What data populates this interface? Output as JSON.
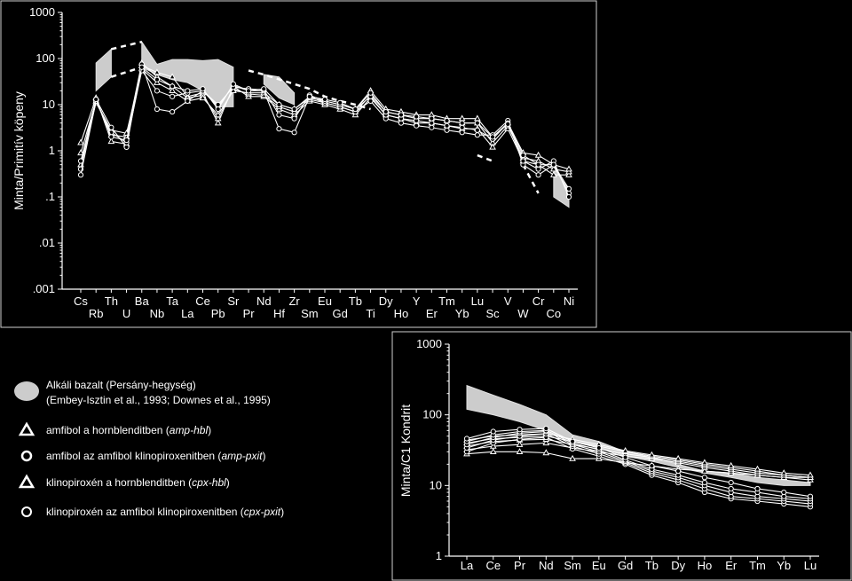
{
  "chart_data": [
    {
      "type": "line",
      "yscale": "log",
      "ylim": [
        0.001,
        1000
      ],
      "ylabel": "Minta/Primitív köpeny",
      "yticks": [
        "1000",
        "100",
        "10",
        "1",
        ".1",
        ".01",
        ".001"
      ],
      "categories": [
        "Cs",
        "Rb",
        "Th",
        "U",
        "Ba",
        "Nb",
        "Ta",
        "La",
        "Ce",
        "Pb",
        "Sr",
        "Pr",
        "Nd",
        "Hf",
        "Zr",
        "Sm",
        "Eu",
        "Gd",
        "Tb",
        "Ti",
        "Dy",
        "Ho",
        "Y",
        "Er",
        "Tm",
        "Yb",
        "Lu",
        "Sc",
        "V",
        "W",
        "Cr",
        "Co",
        "Ni"
      ],
      "top_row": [
        "Cs",
        "Th",
        "Ba",
        "Ta",
        "Ce",
        "Sr",
        "Nd",
        "Zr",
        "Eu",
        "Tb",
        "Dy",
        "Y",
        "Tm",
        "Lu",
        "V",
        "Cr",
        "Ni"
      ],
      "bottom_row": [
        "Rb",
        "U",
        "Nb",
        "La",
        "Pb",
        "Pr",
        "Hf",
        "Sm",
        "Gd",
        "Ti",
        "Ho",
        "Er",
        "Yb",
        "Sc",
        "W",
        "Co"
      ],
      "field": {
        "name": "Alkáli bazalt (Persány-hegység)",
        "upper": [
          null,
          80,
          160,
          null,
          230,
          75,
          95,
          95,
          90,
          95,
          65,
          null,
          null,
          null,
          null,
          null,
          null,
          null,
          null,
          null,
          null,
          null,
          null,
          null,
          null,
          null,
          null,
          null,
          null,
          null,
          null,
          0.45,
          0.14
        ],
        "lower": [
          null,
          20,
          40,
          null,
          65,
          45,
          35,
          30,
          20,
          9,
          9,
          null,
          null,
          null,
          null,
          null,
          null,
          null,
          null,
          null,
          null,
          null,
          null,
          null,
          null,
          null,
          null,
          null,
          null,
          null,
          null,
          0.1,
          0.06
        ],
        "dashed_upper": [
          [
            2,
            160
          ],
          [
            4,
            230
          ],
          null,
          [
            11,
            55
          ],
          [
            12,
            45
          ],
          [
            15,
            22
          ],
          [
            16,
            15
          ],
          [
            17,
            12
          ],
          [
            18,
            10
          ],
          [
            19,
            8
          ]
        ],
        "upper2": [
          null,
          null,
          null,
          null,
          null,
          null,
          null,
          null,
          null,
          null,
          null,
          null,
          45,
          40,
          18,
          null,
          null,
          null,
          null,
          null,
          null,
          null,
          null,
          null,
          null,
          null,
          null,
          null,
          null,
          null,
          null,
          null,
          null
        ],
        "lower2": [
          null,
          null,
          null,
          null,
          null,
          null,
          null,
          null,
          null,
          null,
          null,
          null,
          28,
          14,
          10,
          null,
          null,
          null,
          null,
          null,
          null,
          null,
          null,
          null,
          null,
          null,
          null,
          null,
          null,
          null,
          null,
          null,
          null
        ]
      },
      "series": [
        {
          "symbol": "triangle",
          "values": [
            1.5,
            14,
            1.6,
            1.4,
            70,
            50,
            40,
            15,
            18,
            4,
            25,
            15,
            15,
            8,
            6,
            12,
            10,
            8,
            6,
            14,
            6,
            5,
            4,
            4,
            3.5,
            3,
            3,
            1.2,
            3,
            0.6,
            0.5,
            0.3,
            0.3
          ]
        },
        {
          "symbol": "triangle",
          "values": [
            0.9,
            12,
            2.2,
            2.0,
            80,
            40,
            25,
            14,
            16,
            5,
            22,
            17,
            16,
            9,
            7,
            13,
            11,
            9,
            7,
            16,
            7,
            6,
            5,
            5,
            4.5,
            4,
            4,
            1.5,
            3.5,
            0.7,
            0.6,
            0.4,
            0.35
          ]
        },
        {
          "symbol": "triangle",
          "values": [
            0.5,
            11,
            2.8,
            2.4,
            60,
            30,
            20,
            12,
            14,
            6,
            20,
            18,
            18,
            10,
            8,
            14,
            12,
            10,
            8,
            20,
            8,
            7,
            6,
            6,
            5,
            5,
            5,
            2,
            4,
            0.9,
            0.8,
            0.5,
            0.4
          ]
        },
        {
          "symbol": "circle",
          "values": [
            0.4,
            13,
            3.2,
            1.2,
            75,
            8,
            7,
            12,
            20,
            9,
            26,
            20,
            20,
            3,
            2.5,
            15,
            11,
            9,
            7,
            12,
            5,
            4,
            3.5,
            3.2,
            2.8,
            2.5,
            2.2,
            2.2,
            4.5,
            0.5,
            0.3,
            0.5,
            0.12
          ]
        },
        {
          "symbol": "circle",
          "values": [
            0.3,
            12,
            2.5,
            1.5,
            55,
            20,
            15,
            18,
            20,
            10,
            24,
            22,
            21,
            6,
            5,
            16,
            12,
            10,
            8,
            15,
            6,
            5,
            4.5,
            4,
            3.5,
            3.2,
            2.8,
            1.8,
            4,
            0.6,
            0.4,
            0.6,
            0.1
          ]
        },
        {
          "symbol": "circle",
          "values": [
            0.6,
            13,
            2.0,
            1.7,
            65,
            35,
            25,
            20,
            22,
            8,
            28,
            20,
            22,
            10,
            8,
            15,
            13,
            11,
            8,
            18,
            7,
            6,
            5.5,
            5,
            4.5,
            4,
            4,
            2,
            3.8,
            0.8,
            0.5,
            0.5,
            0.15
          ]
        }
      ]
    },
    {
      "type": "line",
      "yscale": "log",
      "ylim": [
        1,
        1000
      ],
      "ylabel": "Minta/C1 Kondrit",
      "yticks": [
        "1000",
        "100",
        "10",
        "1"
      ],
      "categories": [
        "La",
        "Ce",
        "Pr",
        "Nd",
        "Sm",
        "Eu",
        "Gd",
        "Tb",
        "Dy",
        "Ho",
        "Er",
        "Tm",
        "Yb",
        "Lu"
      ],
      "field": {
        "name": "Alkáli bazalt (Persány-hegység)",
        "upper": [
          260,
          190,
          140,
          100,
          52,
          42,
          30,
          25,
          20,
          16,
          15,
          13,
          12,
          11
        ],
        "lower": [
          120,
          100,
          80,
          60,
          42,
          35,
          26,
          22,
          18,
          15,
          13,
          11,
          10,
          10
        ]
      },
      "series": [
        {
          "symbol": "triangle",
          "values": [
            28,
            30,
            30,
            29,
            24,
            24,
            21,
            19,
            17,
            16,
            15,
            14,
            13,
            13
          ]
        },
        {
          "symbol": "triangle",
          "values": [
            32,
            36,
            38,
            40,
            34,
            30,
            26,
            24,
            21,
            18,
            16,
            14,
            13,
            12
          ]
        },
        {
          "symbol": "triangle",
          "values": [
            36,
            42,
            44,
            45,
            38,
            33,
            28,
            25,
            22,
            19,
            17,
            15,
            14,
            13
          ]
        },
        {
          "symbol": "triangle",
          "values": [
            40,
            46,
            48,
            50,
            42,
            36,
            30,
            26,
            23,
            20,
            18,
            16,
            14,
            13
          ]
        },
        {
          "symbol": "triangle",
          "values": [
            44,
            50,
            52,
            54,
            45,
            38,
            31,
            27,
            24,
            21,
            19,
            17,
            15,
            14
          ]
        },
        {
          "symbol": "circle",
          "values": [
            30,
            40,
            45,
            48,
            33,
            26,
            20,
            14,
            11,
            8,
            6.5,
            6,
            5.5,
            5
          ]
        },
        {
          "symbol": "circle",
          "values": [
            34,
            44,
            50,
            54,
            36,
            28,
            21,
            15,
            12,
            9,
            7,
            6.5,
            6,
            5.5
          ]
        },
        {
          "symbol": "circle",
          "values": [
            38,
            48,
            55,
            58,
            38,
            30,
            22,
            16,
            13,
            10,
            8,
            7,
            6.5,
            6
          ]
        },
        {
          "symbol": "circle",
          "values": [
            42,
            52,
            58,
            60,
            40,
            32,
            23,
            17,
            14,
            11,
            9,
            8,
            7,
            6.5
          ]
        },
        {
          "symbol": "circle",
          "values": [
            46,
            58,
            62,
            64,
            42,
            34,
            25,
            19,
            16,
            13,
            11,
            9,
            8,
            7
          ]
        }
      ]
    }
  ],
  "legend": [
    {
      "symbol": "field",
      "text": "Alkáli bazalt (Persány-hegység)",
      "sub": "(Embey-Isztin et al., 1993; Downes et al., 1995)"
    },
    {
      "symbol": "triangle-bold",
      "text": "amfibol a hornblenditben (",
      "it": "amp-hbl",
      "tail": ")"
    },
    {
      "symbol": "circle-bold",
      "text": "amfibol az amfibol klinopiroxenitben (",
      "it": "amp-pxit",
      "tail": ")"
    },
    {
      "symbol": "triangle-bold",
      "text": "klinopiroxén a hornblenditben (",
      "it": "cpx-hbl",
      "tail": ")"
    },
    {
      "symbol": "circle-thin",
      "text": "klinopiroxén az amfibol klinopiroxenitben (",
      "it": "cpx-pxit",
      "tail": ")"
    }
  ],
  "colors": {
    "background": "#000000",
    "field": "#cccccc",
    "lines": "#ffffff"
  }
}
